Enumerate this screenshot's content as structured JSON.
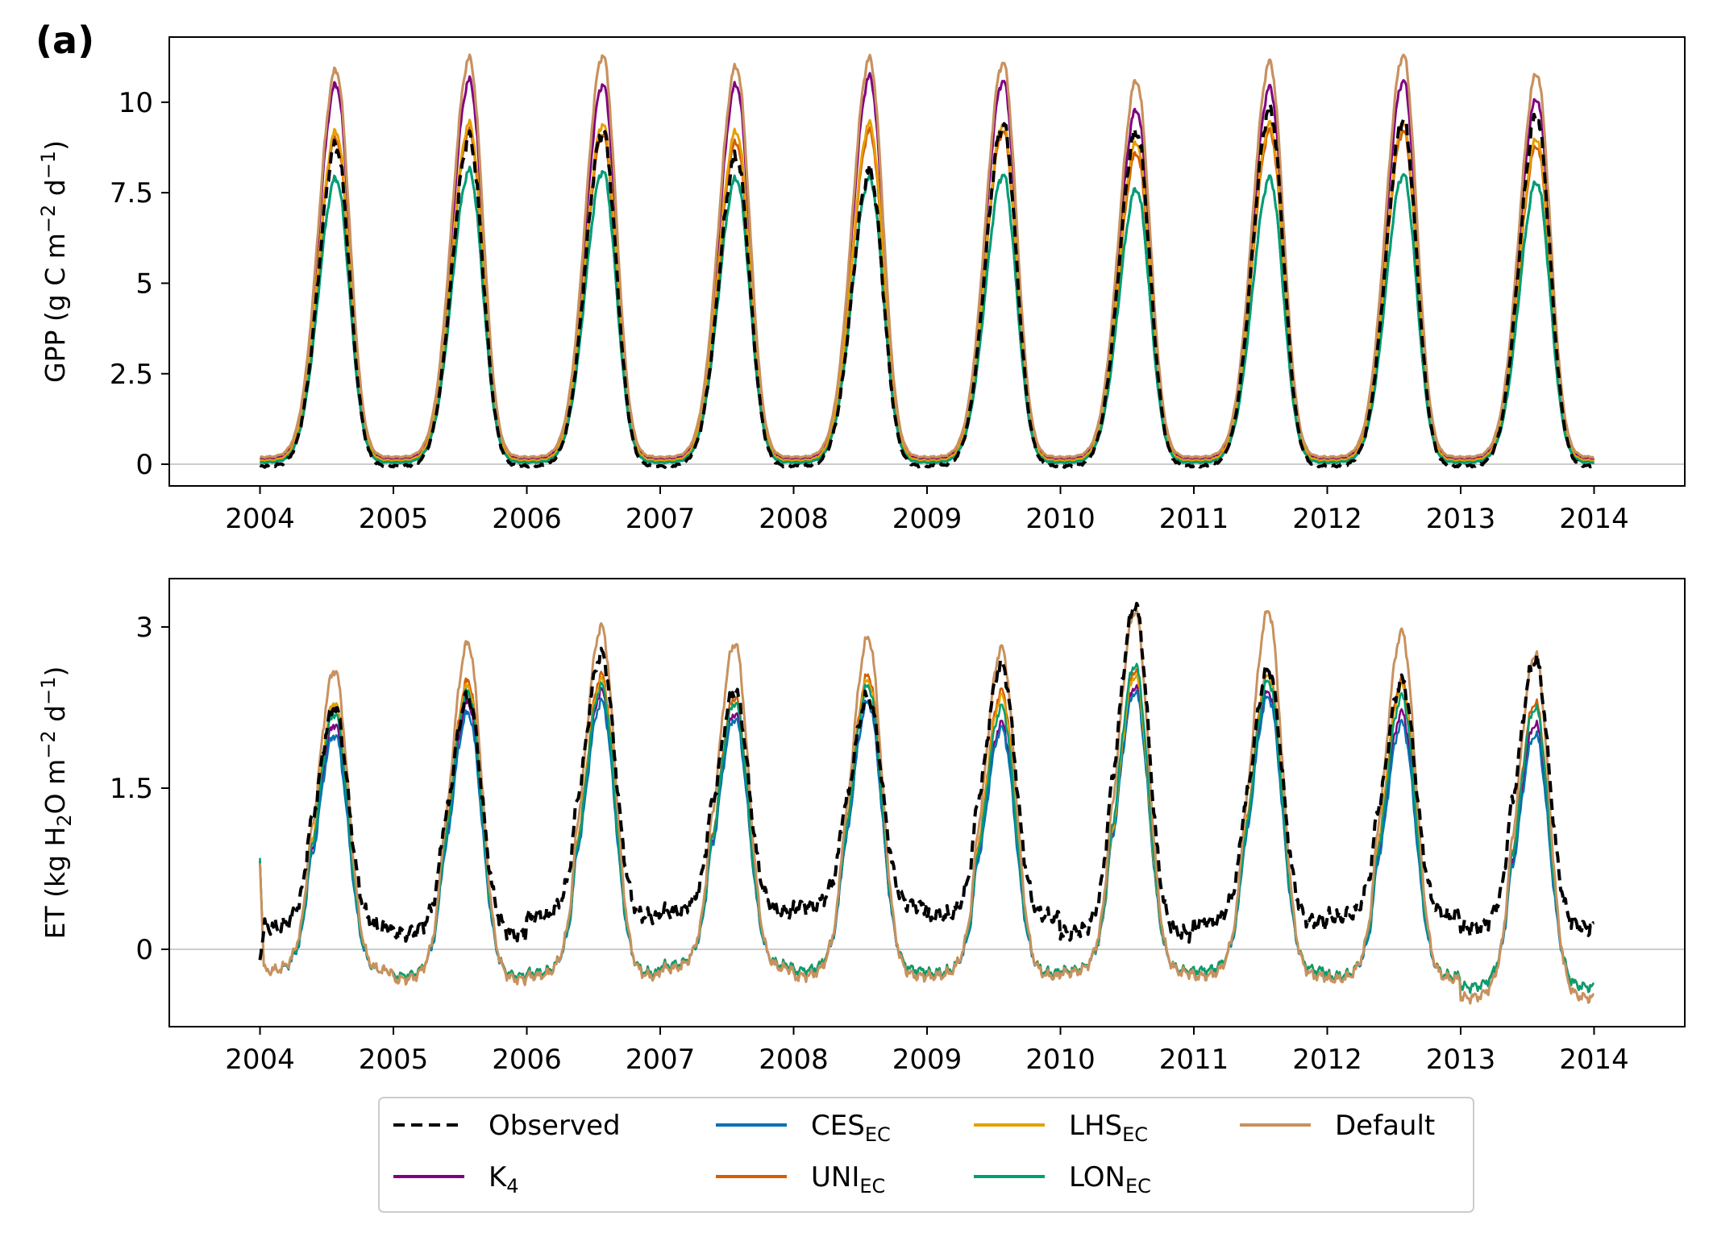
{
  "figure": {
    "panel_tag": "(a)"
  },
  "chart_data": [
    {
      "type": "line",
      "ylabel": {
        "base": "GPP (g C m",
        "exp1": "−2",
        "mid": " d",
        "exp2": "−1",
        "end": ")"
      },
      "xlim": [
        2004,
        2014
      ],
      "ylim": [
        -0.6,
        11.8
      ],
      "x_ticks": [
        2004,
        2005,
        2006,
        2007,
        2008,
        2009,
        2010,
        2011,
        2012,
        2013,
        2014
      ],
      "x_tick_labels": [
        "2004",
        "2005",
        "2006",
        "2007",
        "2008",
        "2009",
        "2010",
        "2011",
        "2012",
        "2013",
        "2014"
      ],
      "y_ticks": [
        0,
        2.5,
        5,
        7.5,
        10
      ],
      "y_tick_labels": [
        "0",
        "2.5",
        "5",
        "7.5",
        "10"
      ],
      "zero_line": true,
      "base_value": 0.1,
      "peak_date": 0.57,
      "width_up": 0.13,
      "width_down": 0.1,
      "series": [
        {
          "key": "observed",
          "color": "#000000",
          "dashed": true,
          "width": 4,
          "peaks": [
            8.8,
            9.0,
            9.2,
            8.5,
            8.1,
            9.4,
            9.2,
            9.8,
            9.5,
            9.6
          ],
          "low": -0.05
        },
        {
          "key": "k4",
          "color": "#800080",
          "width": 3,
          "peaks": [
            10.5,
            10.6,
            10.5,
            10.5,
            10.7,
            10.6,
            9.8,
            10.4,
            10.6,
            10.1
          ],
          "low": 0.15
        },
        {
          "key": "ces",
          "color": "#0072B2",
          "width": 3,
          "peaks": [
            7.9,
            8.1,
            8.1,
            7.9,
            7.9,
            8.0,
            7.6,
            7.9,
            8.0,
            7.8
          ],
          "low": 0.05
        },
        {
          "key": "uni",
          "color": "#D55E00",
          "width": 3,
          "peaks": [
            9.0,
            9.2,
            9.1,
            8.9,
            9.2,
            9.2,
            8.6,
            9.2,
            9.2,
            8.8
          ],
          "low": 0.1
        },
        {
          "key": "lhs",
          "color": "#E69F00",
          "width": 3,
          "peaks": [
            9.2,
            9.4,
            9.4,
            9.2,
            9.4,
            9.4,
            8.9,
            9.4,
            9.4,
            9.0
          ],
          "low": 0.1
        },
        {
          "key": "lon",
          "color": "#009E73",
          "width": 3,
          "peaks": [
            7.9,
            8.1,
            8.1,
            7.9,
            7.9,
            8.0,
            7.6,
            7.9,
            8.0,
            7.8
          ],
          "low": 0.05
        },
        {
          "key": "default",
          "color": "#C8915E",
          "width": 3.2,
          "peaks": [
            10.9,
            11.2,
            11.3,
            11.0,
            11.2,
            11.1,
            10.6,
            11.1,
            11.3,
            10.8
          ],
          "low": 0.2
        }
      ]
    },
    {
      "type": "line",
      "ylabel": {
        "base": "ET (kg H",
        "sub": "2",
        "mid": "O m",
        "exp1": "−2",
        "mid2": " d",
        "exp2": "−1",
        "end": ")"
      },
      "xlim": [
        2004,
        2014
      ],
      "ylim": [
        -0.72,
        3.45
      ],
      "x_ticks": [
        2004,
        2005,
        2006,
        2007,
        2008,
        2009,
        2010,
        2011,
        2012,
        2013,
        2014
      ],
      "x_tick_labels": [
        "2004",
        "2005",
        "2006",
        "2007",
        "2008",
        "2009",
        "2010",
        "2011",
        "2012",
        "2013",
        "2014"
      ],
      "y_ticks": [
        0,
        1.5,
        3
      ],
      "y_tick_labels": [
        "0",
        "1.5",
        "3"
      ],
      "zero_line": true,
      "peak_date": 0.56,
      "width_up": 0.13,
      "width_down": 0.1,
      "series": [
        {
          "key": "observed",
          "color": "#000000",
          "dashed": true,
          "width": 4,
          "peaks": [
            2.25,
            2.35,
            2.75,
            2.4,
            2.35,
            2.65,
            3.2,
            2.6,
            2.5,
            2.7
          ],
          "lows": [
            0.2,
            0.15,
            0.3,
            0.35,
            0.4,
            0.3,
            0.15,
            0.25,
            0.3,
            0.2
          ],
          "start": -0.1
        },
        {
          "key": "k4",
          "color": "#800080",
          "width": 2.5,
          "peaks": [
            2.1,
            2.3,
            2.4,
            2.2,
            2.3,
            2.1,
            2.45,
            2.4,
            2.2,
            2.1
          ],
          "lows": [
            -0.2,
            -0.25,
            -0.22,
            -0.15,
            -0.2,
            -0.22,
            -0.2,
            -0.2,
            -0.25,
            -0.35
          ],
          "start": 0.82
        },
        {
          "key": "ces",
          "color": "#0072B2",
          "width": 2.5,
          "peaks": [
            2.0,
            2.2,
            2.3,
            2.15,
            2.3,
            2.05,
            2.4,
            2.35,
            2.1,
            2.0
          ],
          "lows": [
            -0.2,
            -0.25,
            -0.22,
            -0.15,
            -0.2,
            -0.22,
            -0.2,
            -0.2,
            -0.25,
            -0.35
          ],
          "start": 0.82
        },
        {
          "key": "uni",
          "color": "#D55E00",
          "width": 2.5,
          "peaks": [
            2.3,
            2.5,
            2.55,
            2.35,
            2.55,
            2.4,
            2.6,
            2.6,
            2.5,
            2.3
          ],
          "lows": [
            -0.2,
            -0.25,
            -0.22,
            -0.15,
            -0.2,
            -0.22,
            -0.2,
            -0.2,
            -0.25,
            -0.35
          ],
          "start": 0.82
        },
        {
          "key": "lhs",
          "color": "#E69F00",
          "width": 2.5,
          "peaks": [
            2.3,
            2.45,
            2.5,
            2.3,
            2.5,
            2.35,
            2.55,
            2.55,
            2.45,
            2.25
          ],
          "lows": [
            -0.2,
            -0.25,
            -0.22,
            -0.15,
            -0.2,
            -0.22,
            -0.2,
            -0.2,
            -0.25,
            -0.35
          ],
          "start": 0.82
        },
        {
          "key": "lon",
          "color": "#009E73",
          "width": 2.5,
          "peaks": [
            2.2,
            2.4,
            2.45,
            2.3,
            2.45,
            2.25,
            2.65,
            2.5,
            2.35,
            2.25
          ],
          "lows": [
            -0.2,
            -0.25,
            -0.22,
            -0.15,
            -0.2,
            -0.22,
            -0.2,
            -0.2,
            -0.25,
            -0.35
          ],
          "start": 0.85
        },
        {
          "key": "default",
          "color": "#C8915E",
          "width": 3,
          "peaks": [
            2.6,
            2.85,
            3.0,
            2.85,
            2.9,
            2.8,
            3.15,
            3.15,
            2.95,
            2.75
          ],
          "lows": [
            -0.2,
            -0.28,
            -0.25,
            -0.18,
            -0.25,
            -0.25,
            -0.22,
            -0.25,
            -0.28,
            -0.45
          ],
          "start": 0.8
        }
      ]
    }
  ],
  "legend": {
    "placement": "bottom-center",
    "entries": [
      {
        "key": "observed",
        "label": "Observed",
        "sub": ""
      },
      {
        "key": "k4",
        "label": "K",
        "sub": "4"
      },
      {
        "key": "ces",
        "label": "CES",
        "sub": "EC"
      },
      {
        "key": "uni",
        "label": "UNI",
        "sub": "EC"
      },
      {
        "key": "lhs",
        "label": "LHS",
        "sub": "EC"
      },
      {
        "key": "lon",
        "label": "LON",
        "sub": "EC"
      },
      {
        "key": "default",
        "label": "Default",
        "sub": ""
      }
    ]
  }
}
